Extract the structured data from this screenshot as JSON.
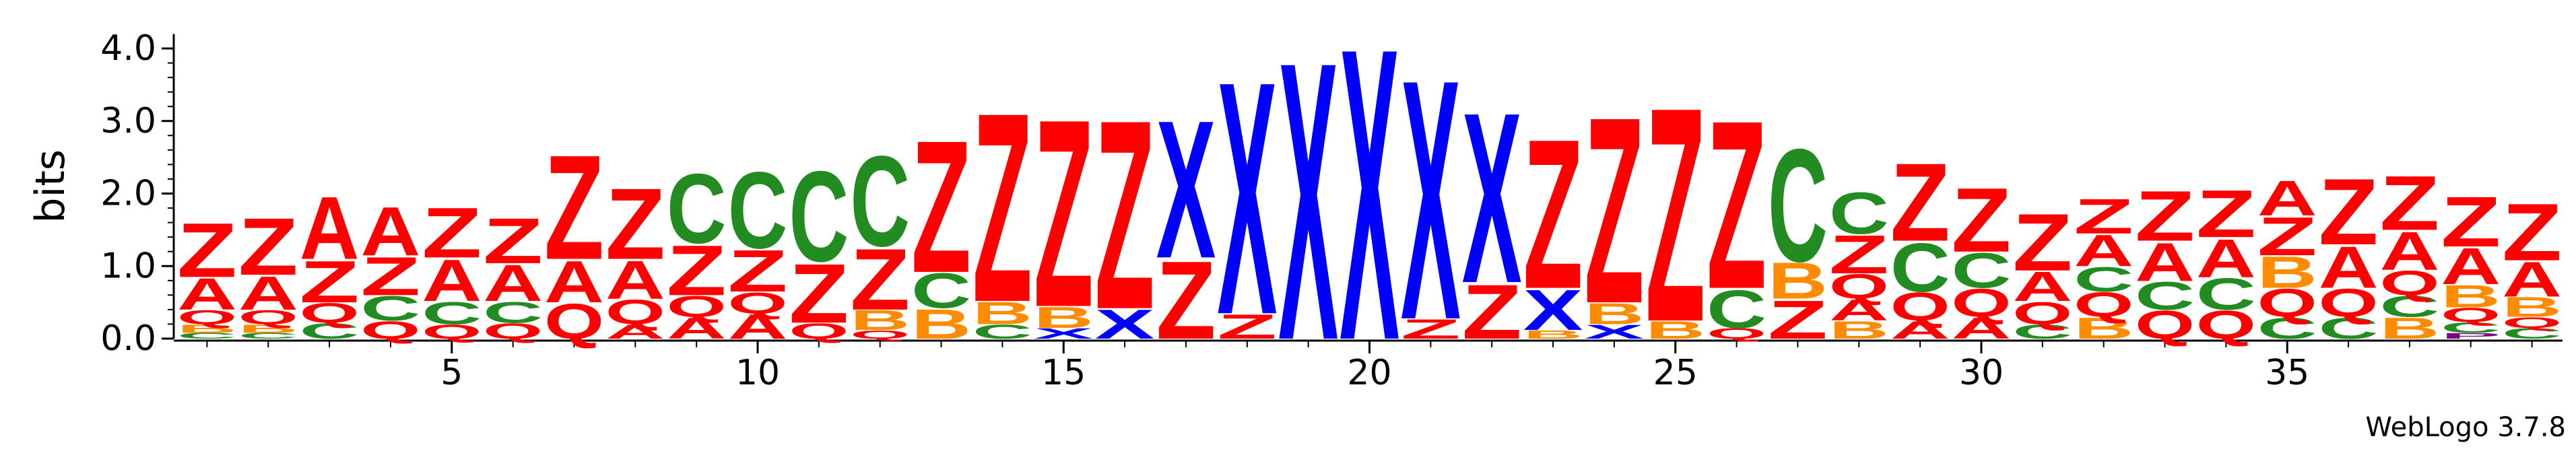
{
  "chart_data": {
    "type": "sequence-logo",
    "ylabel": "bits",
    "ylim": [
      0,
      4.2
    ],
    "y_ticks": [
      0.0,
      1.0,
      2.0,
      3.0,
      4.0
    ],
    "y_tick_labels": [
      "0.0",
      "1.0",
      "2.0",
      "3.0",
      "4.0"
    ],
    "x_tick_positions": [
      5,
      10,
      15,
      20,
      25,
      30,
      35
    ],
    "x_tick_labels": [
      "5",
      "10",
      "15",
      "20",
      "25",
      "30",
      "35"
    ],
    "n_positions": 39,
    "colors": {
      "Z": "#ff0000",
      "A": "#ff0000",
      "Q": "#ff0000",
      "C": "#228b22",
      "X": "#0000ff",
      "B": "#ff8c00",
      "P": "#800080"
    },
    "positions": [
      {
        "pos": 1,
        "letters": [
          [
            "C",
            0.08
          ],
          [
            "B",
            0.12
          ],
          [
            "Q",
            0.2
          ],
          [
            "A",
            0.45
          ],
          [
            "Z",
            0.78
          ]
        ]
      },
      {
        "pos": 2,
        "letters": [
          [
            "C",
            0.08
          ],
          [
            "B",
            0.12
          ],
          [
            "Q",
            0.2
          ],
          [
            "A",
            0.48
          ],
          [
            "Z",
            0.82
          ]
        ]
      },
      {
        "pos": 3,
        "letters": [
          [
            "C",
            0.22
          ],
          [
            "Q",
            0.28
          ],
          [
            "Z",
            0.6
          ],
          [
            "A",
            0.9
          ]
        ]
      },
      {
        "pos": 4,
        "letters": [
          [
            "Q",
            0.25
          ],
          [
            "C",
            0.35
          ],
          [
            "Z",
            0.55
          ],
          [
            "A",
            0.7
          ]
        ]
      },
      {
        "pos": 5,
        "letters": [
          [
            "Q",
            0.2
          ],
          [
            "C",
            0.32
          ],
          [
            "A",
            0.6
          ],
          [
            "Z",
            0.72
          ]
        ]
      },
      {
        "pos": 6,
        "letters": [
          [
            "Q",
            0.22
          ],
          [
            "C",
            0.3
          ],
          [
            "A",
            0.52
          ],
          [
            "Z",
            0.65
          ]
        ]
      },
      {
        "pos": 7,
        "letters": [
          [
            "Q",
            0.5
          ],
          [
            "A",
            0.6
          ],
          [
            "Z",
            1.5
          ]
        ]
      },
      {
        "pos": 8,
        "letters": [
          [
            "A",
            0.2
          ],
          [
            "Q",
            0.35
          ],
          [
            "A",
            0.55
          ],
          [
            "Z",
            1.02
          ]
        ]
      },
      {
        "pos": 9,
        "letters": [
          [
            "A",
            0.3
          ],
          [
            "Q",
            0.3
          ],
          [
            "Z",
            0.72
          ],
          [
            "C",
            1.0
          ]
        ]
      },
      {
        "pos": 10,
        "letters": [
          [
            "A",
            0.35
          ],
          [
            "Q",
            0.3
          ],
          [
            "Z",
            0.6
          ],
          [
            "C",
            1.1
          ]
        ]
      },
      {
        "pos": 11,
        "letters": [
          [
            "Q",
            0.22
          ],
          [
            "Z",
            0.85
          ],
          [
            "C",
            1.3
          ]
        ]
      },
      {
        "pos": 12,
        "letters": [
          [
            "Q",
            0.12
          ],
          [
            "B",
            0.28
          ],
          [
            "Z",
            0.88
          ],
          [
            "C",
            1.3
          ]
        ]
      },
      {
        "pos": 13,
        "letters": [
          [
            "B",
            0.42
          ],
          [
            "C",
            0.5
          ],
          [
            "Z",
            1.9
          ]
        ]
      },
      {
        "pos": 14,
        "letters": [
          [
            "C",
            0.2
          ],
          [
            "B",
            0.32
          ],
          [
            "Z",
            2.72
          ]
        ]
      },
      {
        "pos": 15,
        "letters": [
          [
            "X",
            0.15
          ],
          [
            "B",
            0.3
          ],
          [
            "Z",
            2.7
          ]
        ]
      },
      {
        "pos": 16,
        "letters": [
          [
            "X",
            0.42
          ],
          [
            "Z",
            2.72
          ]
        ]
      },
      {
        "pos": 17,
        "letters": [
          [
            "Z",
            1.12
          ],
          [
            "X",
            1.98
          ]
        ]
      },
      {
        "pos": 18,
        "letters": [
          [
            "Z",
            0.35
          ],
          [
            "X",
            3.35
          ]
        ]
      },
      {
        "pos": 19,
        "letters": [
          [
            "X",
            4.0
          ]
        ]
      },
      {
        "pos": 20,
        "letters": [
          [
            "X",
            4.2
          ]
        ]
      },
      {
        "pos": 21,
        "letters": [
          [
            "Z",
            0.28
          ],
          [
            "X",
            3.45
          ]
        ]
      },
      {
        "pos": 22,
        "letters": [
          [
            "Z",
            0.78
          ],
          [
            "X",
            2.45
          ]
        ]
      },
      {
        "pos": 23,
        "letters": [
          [
            "B",
            0.12
          ],
          [
            "X",
            0.58
          ],
          [
            "Z",
            2.15
          ]
        ]
      },
      {
        "pos": 24,
        "letters": [
          [
            "X",
            0.2
          ],
          [
            "B",
            0.3
          ],
          [
            "Z",
            2.68
          ]
        ]
      },
      {
        "pos": 25,
        "letters": [
          [
            "B",
            0.25
          ],
          [
            "Z",
            3.08
          ]
        ]
      },
      {
        "pos": 26,
        "letters": [
          [
            "Q",
            0.15
          ],
          [
            "C",
            0.55
          ],
          [
            "Z",
            2.42
          ]
        ]
      },
      {
        "pos": 27,
        "letters": [
          [
            "Z",
            0.55
          ],
          [
            "B",
            0.52
          ],
          [
            "C",
            1.62
          ]
        ]
      },
      {
        "pos": 28,
        "letters": [
          [
            "B",
            0.25
          ],
          [
            "A",
            0.3
          ],
          [
            "Q",
            0.35
          ],
          [
            "Z",
            0.55
          ],
          [
            "C",
            0.6
          ]
        ]
      },
      {
        "pos": 29,
        "letters": [
          [
            "A",
            0.25
          ],
          [
            "Q",
            0.4
          ],
          [
            "C",
            0.7
          ],
          [
            "Z",
            1.12
          ]
        ]
      },
      {
        "pos": 30,
        "letters": [
          [
            "A",
            0.3
          ],
          [
            "Q",
            0.4
          ],
          [
            "C",
            0.5
          ],
          [
            "Z",
            0.92
          ]
        ]
      },
      {
        "pos": 31,
        "letters": [
          [
            "C",
            0.2
          ],
          [
            "Q",
            0.32
          ],
          [
            "A",
            0.42
          ],
          [
            "Z",
            0.82
          ]
        ]
      },
      {
        "pos": 32,
        "letters": [
          [
            "B",
            0.3
          ],
          [
            "Q",
            0.35
          ],
          [
            "C",
            0.35
          ],
          [
            "A",
            0.45
          ],
          [
            "Z",
            0.5
          ]
        ]
      },
      {
        "pos": 33,
        "letters": [
          [
            "Q",
            0.4
          ],
          [
            "C",
            0.4
          ],
          [
            "A",
            0.55
          ],
          [
            "Z",
            0.72
          ]
        ]
      },
      {
        "pos": 34,
        "letters": [
          [
            "Q",
            0.4
          ],
          [
            "C",
            0.45
          ],
          [
            "A",
            0.55
          ],
          [
            "Z",
            0.68
          ]
        ]
      },
      {
        "pos": 35,
        "letters": [
          [
            "C",
            0.3
          ],
          [
            "Q",
            0.4
          ],
          [
            "B",
            0.45
          ],
          [
            "Z",
            0.55
          ],
          [
            "A",
            0.5
          ]
        ]
      },
      {
        "pos": 36,
        "letters": [
          [
            "C",
            0.3
          ],
          [
            "Q",
            0.4
          ],
          [
            "A",
            0.6
          ],
          [
            "Z",
            0.95
          ]
        ]
      },
      {
        "pos": 37,
        "letters": [
          [
            "B",
            0.3
          ],
          [
            "C",
            0.3
          ],
          [
            "Q",
            0.35
          ],
          [
            "A",
            0.55
          ],
          [
            "Z",
            0.78
          ]
        ]
      },
      {
        "pos": 38,
        "letters": [
          [
            "P",
            0.08
          ],
          [
            "C",
            0.15
          ],
          [
            "Q",
            0.2
          ],
          [
            "B",
            0.32
          ],
          [
            "A",
            0.52
          ],
          [
            "Z",
            0.72
          ]
        ]
      },
      {
        "pos": 39,
        "letters": [
          [
            "C",
            0.15
          ],
          [
            "Q",
            0.15
          ],
          [
            "B",
            0.28
          ],
          [
            "A",
            0.5
          ],
          [
            "Z",
            0.82
          ]
        ]
      }
    ]
  },
  "credit": "WebLogo 3.7.8"
}
